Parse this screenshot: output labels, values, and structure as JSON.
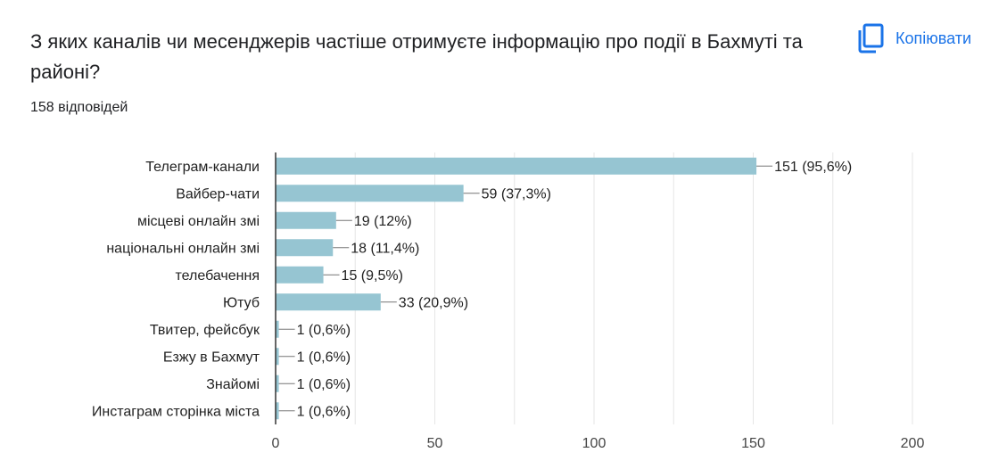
{
  "question": {
    "title": "З яких каналів чи месенджерів частіше отримуєте інформацію про події в Бахмуті та районі?",
    "responses": "158 відповідей"
  },
  "copy_button": {
    "label": "Копіювати",
    "icon": "copy-icon"
  },
  "colors": {
    "bar": "#96c5d2",
    "text": "#202124",
    "accent": "#1a73e8",
    "grid": "#e6e6e6",
    "axis": "#333333"
  },
  "chart_data": {
    "type": "bar",
    "orientation": "horizontal",
    "categories": [
      "Телеграм-канали",
      "Вайбер-чати",
      "місцеві онлайн змі",
      "національні онлайн змі",
      "телебачення",
      "Ютуб",
      "Твитер, фейсбук",
      "Езжу в Бахмут",
      "Знайомі",
      "Инстаграм сторінка міста"
    ],
    "values": [
      151,
      59,
      19,
      18,
      15,
      33,
      1,
      1,
      1,
      1
    ],
    "value_labels": [
      "151 (95,6%)",
      "59 (37,3%)",
      "19 (12%)",
      "18 (11,4%)",
      "15 (9,5%)",
      "33 (20,9%)",
      "1 (0,6%)",
      "1 (0,6%)",
      "1 (0,6%)",
      "1 (0,6%)"
    ],
    "xlim": [
      0,
      200
    ],
    "xticks": [
      0,
      50,
      100,
      150,
      200
    ],
    "grid": true,
    "legend": "none",
    "title": "",
    "xlabel": "",
    "ylabel": ""
  }
}
